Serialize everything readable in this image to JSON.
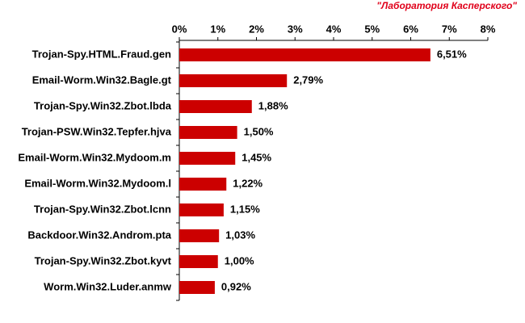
{
  "chart_data": {
    "type": "bar",
    "orientation": "horizontal",
    "annotation": "\"Лаборатория Касперского\"",
    "categories": [
      "Trojan-Spy.HTML.Fraud.gen",
      "Email-Worm.Win32.Bagle.gt",
      "Trojan-Spy.Win32.Zbot.lbda",
      "Trojan-PSW.Win32.Tepfer.hjva",
      "Email-Worm.Win32.Mydoom.m",
      "Email-Worm.Win32.Mydoom.l",
      "Trojan-Spy.Win32.Zbot.lcnn",
      "Backdoor.Win32.Androm.pta",
      "Trojan-Spy.Win32.Zbot.kyvt",
      "Worm.Win32.Luder.anmw"
    ],
    "values": [
      6.51,
      2.79,
      1.88,
      1.5,
      1.45,
      1.22,
      1.15,
      1.03,
      1.0,
      0.92
    ],
    "value_labels": [
      "6,51%",
      "2,79%",
      "1,88%",
      "1,50%",
      "1,45%",
      "1,22%",
      "1,15%",
      "1,03%",
      "1,00%",
      "0,92%"
    ],
    "color": "#cc0000",
    "xlim": [
      0,
      8
    ],
    "xticks": [
      {
        "value": 0,
        "label": "0%"
      },
      {
        "value": 1,
        "label": "1%"
      },
      {
        "value": 2,
        "label": "2%"
      },
      {
        "value": 3,
        "label": "3%"
      },
      {
        "value": 4,
        "label": "4%"
      },
      {
        "value": 5,
        "label": "5%"
      },
      {
        "value": 6,
        "label": "6%"
      },
      {
        "value": 7,
        "label": "7%"
      },
      {
        "value": 8,
        "label": "8%"
      }
    ],
    "grid": false
  }
}
